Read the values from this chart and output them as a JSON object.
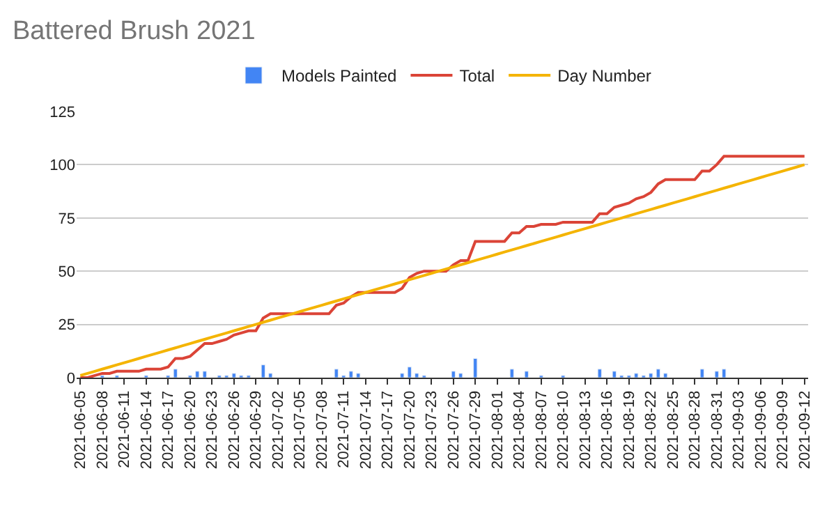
{
  "chart_data": {
    "type": "line",
    "title": "Battered Brush 2021",
    "x": [
      "2021-06-05",
      "2021-06-06",
      "2021-06-07",
      "2021-06-08",
      "2021-06-09",
      "2021-06-10",
      "2021-06-11",
      "2021-06-12",
      "2021-06-13",
      "2021-06-14",
      "2021-06-15",
      "2021-06-16",
      "2021-06-17",
      "2021-06-18",
      "2021-06-19",
      "2021-06-20",
      "2021-06-21",
      "2021-06-22",
      "2021-06-23",
      "2021-06-24",
      "2021-06-25",
      "2021-06-26",
      "2021-06-27",
      "2021-06-28",
      "2021-06-29",
      "2021-06-30",
      "2021-07-01",
      "2021-07-02",
      "2021-07-03",
      "2021-07-04",
      "2021-07-05",
      "2021-07-06",
      "2021-07-07",
      "2021-07-08",
      "2021-07-09",
      "2021-07-10",
      "2021-07-11",
      "2021-07-12",
      "2021-07-13",
      "2021-07-14",
      "2021-07-15",
      "2021-07-16",
      "2021-07-17",
      "2021-07-18",
      "2021-07-19",
      "2021-07-20",
      "2021-07-21",
      "2021-07-22",
      "2021-07-23",
      "2021-07-24",
      "2021-07-25",
      "2021-07-26",
      "2021-07-27",
      "2021-07-28",
      "2021-07-29",
      "2021-07-30",
      "2021-07-31",
      "2021-08-01",
      "2021-08-02",
      "2021-08-03",
      "2021-08-04",
      "2021-08-05",
      "2021-08-06",
      "2021-08-07",
      "2021-08-08",
      "2021-08-09",
      "2021-08-10",
      "2021-08-11",
      "2021-08-12",
      "2021-08-13",
      "2021-08-14",
      "2021-08-15",
      "2021-08-16",
      "2021-08-17",
      "2021-08-18",
      "2021-08-19",
      "2021-08-20",
      "2021-08-21",
      "2021-08-22",
      "2021-08-23",
      "2021-08-24",
      "2021-08-25",
      "2021-08-26",
      "2021-08-27",
      "2021-08-28",
      "2021-08-29",
      "2021-08-30",
      "2021-08-31",
      "2021-09-01",
      "2021-09-02",
      "2021-09-03",
      "2021-09-04",
      "2021-09-05",
      "2021-09-06",
      "2021-09-07",
      "2021-09-08",
      "2021-09-09",
      "2021-09-10",
      "2021-09-11",
      "2021-09-12"
    ],
    "series": [
      {
        "name": "Models Painted",
        "type": "bar",
        "color": "#4285f4",
        "values": [
          null,
          null,
          null,
          1,
          null,
          1,
          null,
          null,
          null,
          1,
          null,
          null,
          1,
          4,
          null,
          1,
          3,
          3,
          null,
          1,
          1,
          2,
          1,
          1,
          null,
          6,
          2,
          null,
          null,
          null,
          null,
          null,
          null,
          null,
          null,
          4,
          1,
          3,
          2,
          null,
          null,
          null,
          null,
          null,
          2,
          5,
          2,
          1,
          null,
          null,
          null,
          3,
          2,
          null,
          9,
          null,
          null,
          null,
          null,
          4,
          null,
          3,
          null,
          1,
          null,
          null,
          1,
          null,
          null,
          null,
          null,
          4,
          null,
          3,
          1,
          1,
          2,
          1,
          2,
          4,
          2,
          null,
          null,
          null,
          null,
          4,
          null,
          3,
          4,
          null,
          null,
          null,
          null,
          null,
          null,
          null,
          null,
          null,
          null,
          null
        ]
      },
      {
        "name": "Total",
        "color": "#db4437",
        "values": [
          0,
          0,
          1,
          2,
          2,
          3,
          3,
          3,
          3,
          4,
          4,
          4,
          5,
          9,
          9,
          10,
          13,
          16,
          16,
          17,
          18,
          20,
          21,
          22,
          22,
          28,
          30,
          30,
          30,
          30,
          30,
          30,
          30,
          30,
          30,
          34,
          35,
          38,
          40,
          40,
          40,
          40,
          40,
          40,
          42,
          47,
          49,
          50,
          50,
          50,
          50,
          53,
          55,
          55,
          64,
          64,
          64,
          64,
          64,
          68,
          68,
          71,
          71,
          72,
          72,
          72,
          73,
          73,
          73,
          73,
          73,
          77,
          77,
          80,
          81,
          82,
          84,
          85,
          87,
          91,
          93,
          93,
          93,
          93,
          93,
          97,
          97,
          100,
          104,
          104,
          104,
          104,
          104,
          104,
          104,
          104,
          104,
          104,
          104,
          104
        ]
      },
      {
        "name": "Day Number",
        "color": "#f4b400",
        "values": [
          1,
          2,
          3,
          4,
          5,
          6,
          7,
          8,
          9,
          10,
          11,
          12,
          13,
          14,
          15,
          16,
          17,
          18,
          19,
          20,
          21,
          22,
          23,
          24,
          25,
          26,
          27,
          28,
          29,
          30,
          31,
          32,
          33,
          34,
          35,
          36,
          37,
          38,
          39,
          40,
          41,
          42,
          43,
          44,
          45,
          46,
          47,
          48,
          49,
          50,
          51,
          52,
          53,
          54,
          55,
          56,
          57,
          58,
          59,
          60,
          61,
          62,
          63,
          64,
          65,
          66,
          67,
          68,
          69,
          70,
          71,
          72,
          73,
          74,
          75,
          76,
          77,
          78,
          79,
          80,
          81,
          82,
          83,
          84,
          85,
          86,
          87,
          88,
          89,
          90,
          91,
          92,
          93,
          94,
          95,
          96,
          97,
          98,
          99,
          100
        ]
      }
    ],
    "xlim": [
      "2021-06-04T12:00",
      "2021-09-12T12:00"
    ],
    "xticks": [
      "2021-06-05",
      "2021-06-08",
      "2021-06-11",
      "2021-06-14",
      "2021-06-17",
      "2021-06-20",
      "2021-06-23",
      "2021-06-26",
      "2021-06-29",
      "2021-07-02",
      "2021-07-05",
      "2021-07-08",
      "2021-07-11",
      "2021-07-14",
      "2021-07-17",
      "2021-07-20",
      "2021-07-23",
      "2021-07-26",
      "2021-07-29",
      "2021-08-01",
      "2021-08-04",
      "2021-08-07",
      "2021-08-10",
      "2021-08-13",
      "2021-08-16",
      "2021-08-19",
      "2021-08-22",
      "2021-08-25",
      "2021-08-28",
      "2021-08-31",
      "2021-09-03",
      "2021-09-06",
      "2021-09-09",
      "2021-09-12"
    ],
    "ylim": [
      0,
      125
    ],
    "yticks": [
      0,
      25,
      50,
      75,
      100,
      125
    ],
    "grid": "y",
    "legend": "top"
  }
}
